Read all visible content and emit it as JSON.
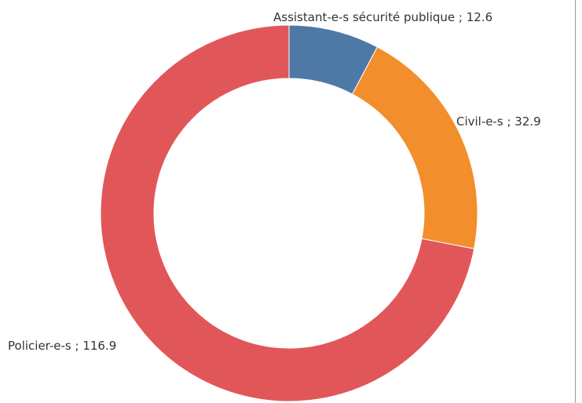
{
  "chart_data": {
    "type": "pie",
    "title": "",
    "style": "donut",
    "slices": [
      {
        "label": "Assistant-e-s sécurité publique ; 12.6",
        "name": "Assistant-e-s sécurité publique",
        "value": 12.6,
        "color": "#4e79a7"
      },
      {
        "label": "Civil-e-s ; 32.9",
        "name": "Civil-e-s",
        "value": 32.9,
        "color": "#f28e2b"
      },
      {
        "label": "Policier-e-s ; 116.9",
        "name": "Policier-e-s",
        "value": 116.9,
        "color": "#e15759"
      }
    ],
    "start": "top",
    "direction": "clockwise",
    "legend": "none"
  }
}
